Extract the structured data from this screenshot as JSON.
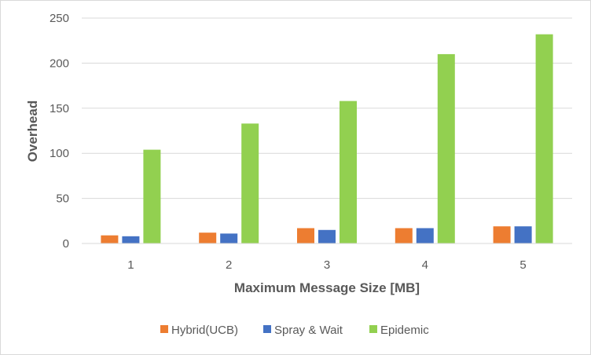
{
  "chart_data": {
    "type": "bar",
    "title": "",
    "xlabel": "Maximum Message Size [MB]",
    "ylabel": "Overhead",
    "categories": [
      "1",
      "2",
      "3",
      "4",
      "5"
    ],
    "ylim": [
      0,
      250
    ],
    "yticks": [
      0,
      50,
      100,
      150,
      200,
      250
    ],
    "grid": true,
    "legend_position": "bottom",
    "series": [
      {
        "name": "Hybrid(UCB)",
        "color": "#ed7d31",
        "values": [
          9,
          12,
          17,
          17,
          19
        ]
      },
      {
        "name": "Spray & Wait",
        "color": "#4472c4",
        "values": [
          8,
          11,
          15,
          17,
          19
        ]
      },
      {
        "name": "Epidemic",
        "color": "#92d050",
        "values": [
          104,
          133,
          158,
          210,
          232
        ]
      }
    ]
  }
}
